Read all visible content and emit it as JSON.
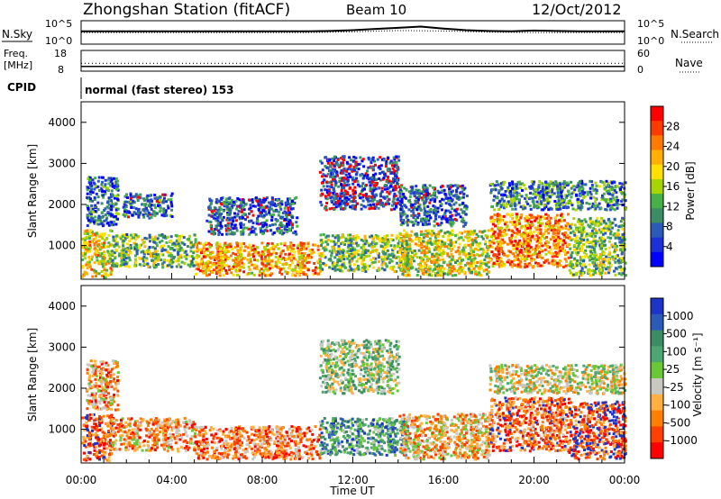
{
  "header": {
    "station": "Zhongshan Station (fitACF)",
    "beam": "Beam 10",
    "date": "12/Oct/2012"
  },
  "chart_data": [
    {
      "type": "line",
      "panel": "noise",
      "left_label": "N.Sky",
      "right_label": "N.Search",
      "left_ticks": [
        "10^5",
        "10^0"
      ],
      "right_ticks": [
        "10^5",
        "10^0"
      ],
      "x_range_hours": [
        0,
        24
      ],
      "series": [
        {
          "name": "N.Sky",
          "style": "solid",
          "x": [
            0,
            1,
            2,
            3,
            4,
            5,
            6,
            7,
            8,
            9,
            10,
            11,
            12,
            13,
            14,
            15,
            16,
            17,
            18,
            19,
            20,
            21,
            22,
            23,
            24
          ],
          "y": [
            3,
            3,
            3,
            3,
            3,
            3,
            3,
            3,
            3,
            3,
            3,
            3.1,
            3.3,
            3.6,
            3.9,
            4.2,
            3.7,
            3.3,
            3.1,
            3.0,
            3.2,
            3.1,
            3.0,
            3.0,
            3.0
          ]
        },
        {
          "name": "N.Search",
          "style": "dotted",
          "x": [
            0,
            2,
            4,
            6,
            8,
            10,
            12,
            14,
            16,
            18,
            20,
            22,
            24
          ],
          "y": [
            2.7,
            2.7,
            2.7,
            2.7,
            2.7,
            2.7,
            2.9,
            3.2,
            3.1,
            2.8,
            2.7,
            2.7,
            2.7
          ]
        }
      ]
    },
    {
      "type": "line",
      "panel": "frequency",
      "left_label": "Freq.",
      "left_unit": "[MHz]",
      "right_label": "Nave",
      "left_ticks": [
        "18",
        "8"
      ],
      "right_ticks": [
        "60",
        "0"
      ],
      "x_range_hours": [
        0,
        24
      ],
      "series": [
        {
          "name": "Freq.",
          "style": "solid",
          "x": [
            0,
            24
          ],
          "y": [
            10,
            10
          ]
        },
        {
          "name": "Nave",
          "style": "dotted",
          "x": [
            0,
            24
          ],
          "y": [
            22,
            22
          ]
        }
      ]
    },
    {
      "type": "line",
      "panel": "cpid",
      "left_label": "CPID",
      "mode_text": "normal (fast stereo) 153"
    },
    {
      "type": "heatmap",
      "panel": "power",
      "ylabel": "Slant Range [km]",
      "yticks": [
        "4000",
        "3000",
        "2000",
        "1000"
      ],
      "ylim": [
        180,
        4500
      ],
      "x_range_hours": [
        0,
        24
      ],
      "colorbar_label": "Power [dB]",
      "colorbar_ticks": [
        "28",
        "24",
        "20",
        "16",
        "12",
        "8",
        "4"
      ],
      "colorbar_colors": [
        "#ff0000",
        "#ff3a00",
        "#ff7a00",
        "#ffb000",
        "#ffe000",
        "#a8d400",
        "#48b048",
        "#3c8c64",
        "#2c5ab8",
        "#1c30d8",
        "#0000ff"
      ],
      "scatter_regions": [
        {
          "t0": 0.0,
          "t1": 1.3,
          "r0": 250,
          "r1": 1400,
          "level": 0.62
        },
        {
          "t0": 0.2,
          "t1": 1.6,
          "r0": 1500,
          "r1": 2700,
          "level": 0.25
        },
        {
          "t0": 1.3,
          "t1": 5.0,
          "r0": 500,
          "r1": 1300,
          "level": 0.42
        },
        {
          "t0": 1.8,
          "t1": 4.0,
          "r0": 1700,
          "r1": 2300,
          "level": 0.22
        },
        {
          "t0": 5.0,
          "t1": 10.5,
          "r0": 300,
          "r1": 1100,
          "level": 0.7
        },
        {
          "t0": 5.5,
          "t1": 9.5,
          "r0": 1300,
          "r1": 2200,
          "level": 0.2
        },
        {
          "t0": 10.5,
          "t1": 14.0,
          "r0": 1900,
          "r1": 3200,
          "level": 0.12
        },
        {
          "t0": 10.5,
          "t1": 14.5,
          "r0": 400,
          "r1": 1300,
          "level": 0.45
        },
        {
          "t0": 14.0,
          "t1": 17.0,
          "r0": 1500,
          "r1": 2500,
          "level": 0.2
        },
        {
          "t0": 14.0,
          "t1": 18.0,
          "r0": 300,
          "r1": 1400,
          "level": 0.55
        },
        {
          "t0": 18.0,
          "t1": 21.5,
          "r0": 500,
          "r1": 1800,
          "level": 0.75
        },
        {
          "t0": 18.0,
          "t1": 24.0,
          "r0": 1900,
          "r1": 2600,
          "level": 0.3
        },
        {
          "t0": 21.5,
          "t1": 24.0,
          "r0": 300,
          "r1": 1700,
          "level": 0.45
        }
      ]
    },
    {
      "type": "heatmap",
      "panel": "velocity",
      "ylabel": "Slant Range [km]",
      "yticks": [
        "4000",
        "3000",
        "2000",
        "1000"
      ],
      "ylim": [
        180,
        4500
      ],
      "xlabel": "Time UT",
      "xticks": [
        "00:00",
        "04:00",
        "08:00",
        "12:00",
        "16:00",
        "20:00",
        "00:00"
      ],
      "x_range_hours": [
        0,
        24
      ],
      "colorbar_label": "Velocity [m s⁻¹]",
      "colorbar_ticks": [
        "1000",
        "500",
        "100",
        "25",
        "-25",
        "-100",
        "-500",
        "-1000"
      ],
      "colorbar_colors": [
        "#1c34c8",
        "#2c5ab8",
        "#3c8c64",
        "#4ca870",
        "#68c838",
        "#c8c8c0",
        "#ffb040",
        "#ff8000",
        "#ff4000",
        "#ff0000"
      ],
      "scatter_regions": [
        {
          "t0": 0.0,
          "t1": 1.3,
          "r0": 250,
          "r1": 1400,
          "level": 0.15
        },
        {
          "t0": 0.2,
          "t1": 1.6,
          "r0": 1500,
          "r1": 2700,
          "level": 0.3
        },
        {
          "t0": 1.3,
          "t1": 5.0,
          "r0": 500,
          "r1": 1300,
          "level": 0.3
        },
        {
          "t0": 5.0,
          "t1": 10.5,
          "r0": 300,
          "r1": 1100,
          "level": 0.25
        },
        {
          "t0": 10.5,
          "t1": 14.0,
          "r0": 1900,
          "r1": 3200,
          "level": 0.55
        },
        {
          "t0": 10.5,
          "t1": 14.5,
          "r0": 400,
          "r1": 1300,
          "level": 0.7
        },
        {
          "t0": 14.0,
          "t1": 18.0,
          "r0": 300,
          "r1": 1400,
          "level": 0.35
        },
        {
          "t0": 18.0,
          "t1": 21.5,
          "r0": 500,
          "r1": 1800,
          "level": 0.2
        },
        {
          "t0": 18.0,
          "t1": 24.0,
          "r0": 1900,
          "r1": 2600,
          "level": 0.45
        },
        {
          "t0": 21.5,
          "t1": 24.0,
          "r0": 300,
          "r1": 1700,
          "level": 0.1
        }
      ]
    }
  ]
}
